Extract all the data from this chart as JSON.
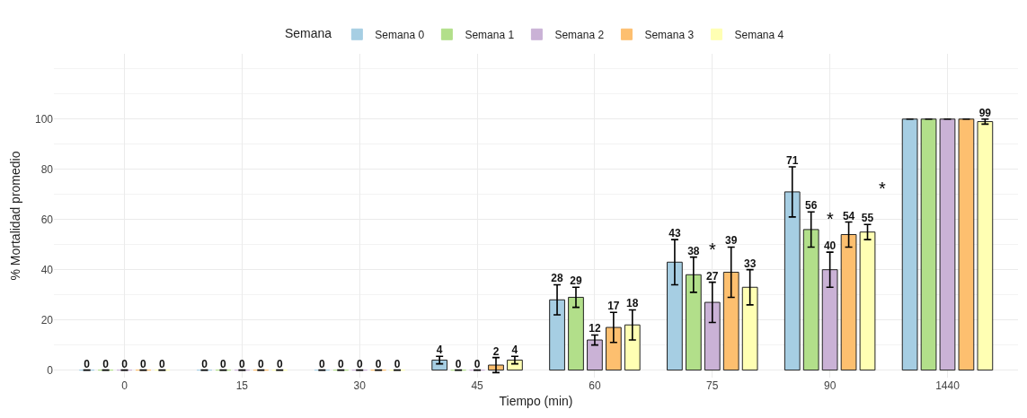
{
  "chart_data": {
    "type": "bar",
    "xlabel": "Tiempo (min)",
    "ylabel": "% Mortalidad promedio",
    "legend_title": "Semana",
    "legend": "top",
    "grid": true,
    "categories": [
      "0",
      "15",
      "30",
      "45",
      "60",
      "75",
      "90",
      "1440"
    ],
    "ylim": [
      -3,
      126
    ],
    "yticks": [
      0,
      20,
      40,
      60,
      80,
      100
    ],
    "series": [
      {
        "name": "Semana 0",
        "color": "#a6cee3",
        "values": [
          0,
          0,
          0,
          4,
          28,
          43,
          71,
          100
        ],
        "errors": [
          null,
          null,
          null,
          1.5,
          6,
          9,
          10,
          null
        ],
        "value_labels": [
          "0",
          "0",
          "0",
          "4",
          "28",
          "43",
          "71",
          null
        ]
      },
      {
        "name": "Semana 1",
        "color": "#b2df8a",
        "values": [
          0,
          0,
          0,
          0,
          29,
          38,
          56,
          100
        ],
        "errors": [
          null,
          null,
          null,
          null,
          4,
          7,
          7,
          null
        ],
        "value_labels": [
          "0",
          "0",
          "0",
          "0",
          "29",
          "38",
          "56",
          null
        ]
      },
      {
        "name": "Semana 2",
        "color": "#cab2d6",
        "values": [
          0,
          0,
          0,
          0,
          12,
          27,
          40,
          100
        ],
        "errors": [
          null,
          null,
          null,
          null,
          2,
          8,
          7,
          null
        ],
        "value_labels": [
          "0",
          "0",
          "0",
          "0",
          "12",
          "27",
          "40",
          null
        ]
      },
      {
        "name": "Semana 3",
        "color": "#fdbf6f",
        "values": [
          0,
          0,
          0,
          2,
          17,
          39,
          54,
          100
        ],
        "errors": [
          null,
          null,
          null,
          3,
          6,
          10,
          5,
          null
        ],
        "value_labels": [
          "0",
          "0",
          "0",
          "2",
          "17",
          "39",
          "54",
          null
        ]
      },
      {
        "name": "Semana 4",
        "color": "#ffffb3",
        "values": [
          0,
          0,
          0,
          4,
          18,
          33,
          55,
          99
        ],
        "errors": [
          null,
          null,
          null,
          1.5,
          6,
          7,
          3,
          1
        ],
        "value_labels": [
          "0",
          "0",
          "0",
          "4",
          "18",
          "33",
          "55",
          "99"
        ]
      }
    ],
    "annotations": [
      {
        "text": "*",
        "x": "75",
        "y": 27
      },
      {
        "text": "*",
        "x": "90",
        "y": 40
      },
      "*"
    ]
  }
}
